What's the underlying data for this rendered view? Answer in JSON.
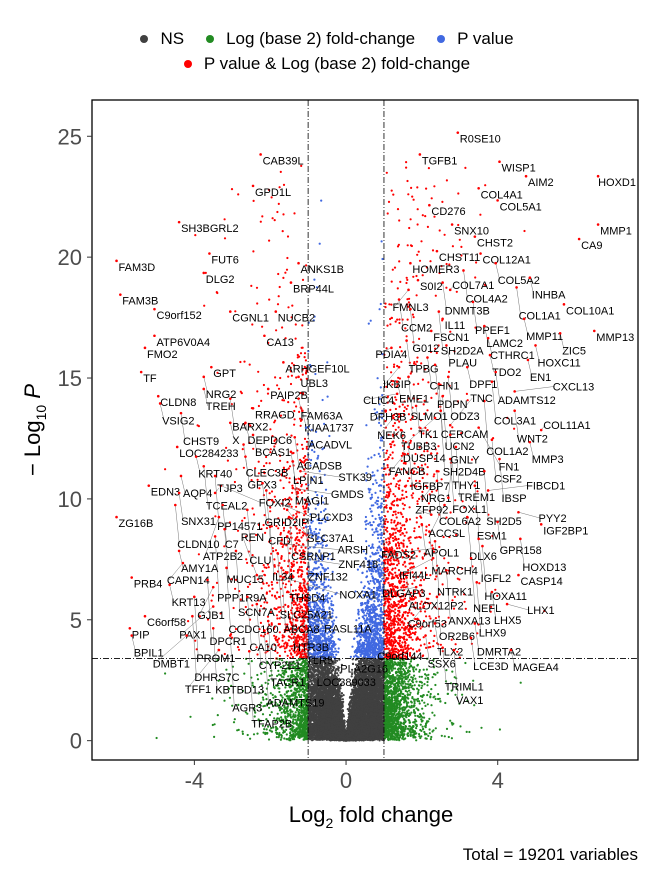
{
  "legend": {
    "items": [
      {
        "label": "NS",
        "color": "#404040"
      },
      {
        "label": "Log (base 2) fold-change",
        "color": "#228B22"
      },
      {
        "label": "P value",
        "color": "#4169E1"
      },
      {
        "label": "P value & Log (base 2) fold-change",
        "color": "#FF0000"
      }
    ]
  },
  "caption": "Total = 19201 variables",
  "chart_data": {
    "type": "scatter",
    "subtype": "volcano",
    "xlabel_main": "Log",
    "xlabel_sub": "2",
    "xlabel_rest": " fold change",
    "ylabel_prefix": "− Log",
    "ylabel_sub": "10",
    "ylabel_var": "P",
    "xlim": [
      -6.7,
      7.7
    ],
    "ylim": [
      -0.8,
      26.5
    ],
    "xticks": [
      -4,
      0,
      4
    ],
    "yticks": [
      0,
      5,
      10,
      15,
      20,
      25
    ],
    "fc_cutoff": [
      -1,
      1
    ],
    "p_cutoff": 3.4,
    "total_variables": 19201,
    "grid": false,
    "legend_position": "top",
    "colors": {
      "ns": "#404040",
      "fc": "#228B22",
      "p": "#4169E1",
      "both": "#FF0000"
    },
    "labeled_genes": [
      {
        "gene": "R0SE10",
        "x": 3.0,
        "y": 24.9
      },
      {
        "gene": "TGFB1",
        "x": 2.0,
        "y": 24.0
      },
      {
        "gene": "WISP1",
        "x": 4.1,
        "y": 23.7
      },
      {
        "gene": "AIM2",
        "x": 4.8,
        "y": 23.1
      },
      {
        "gene": "HOXD1",
        "x": 6.7,
        "y": 23.1
      },
      {
        "gene": "COL4A1",
        "x": 3.55,
        "y": 22.6
      },
      {
        "gene": "COL5A1",
        "x": 4.05,
        "y": 22.1
      },
      {
        "gene": "CD276",
        "x": 2.25,
        "y": 21.9
      },
      {
        "gene": "SNX10",
        "x": 2.85,
        "y": 21.1
      },
      {
        "gene": "MMP1",
        "x": 6.7,
        "y": 21.1
      },
      {
        "gene": "CHST2",
        "x": 3.45,
        "y": 20.6
      },
      {
        "gene": "CA9",
        "x": 6.2,
        "y": 20.5
      },
      {
        "gene": "CHST11",
        "x": 2.45,
        "y": 20.0
      },
      {
        "gene": "COL12A1",
        "x": 3.6,
        "y": 19.9
      },
      {
        "gene": "COL5A2",
        "x": 4.0,
        "y": 19.5
      },
      {
        "gene": "HOMER3",
        "x": 1.75,
        "y": 19.5
      },
      {
        "gene": "COL4A2",
        "x": 3.15,
        "y": 19.2
      },
      {
        "gene": "INHBA",
        "x": 4.9,
        "y": 18.9
      },
      {
        "gene": "S0I2",
        "x": 1.95,
        "y": 18.8
      },
      {
        "gene": "DNMT3B",
        "x": 2.6,
        "y": 18.7
      },
      {
        "gene": "COL1A1",
        "x": 4.55,
        "y": 18.5
      },
      {
        "gene": "FMNL3",
        "x": 1.7,
        "y": 18.4
      },
      {
        "gene": "COL7A1",
        "x": 2.8,
        "y": 18.4
      },
      {
        "gene": "CCM2",
        "x": 1.45,
        "y": 18.0
      },
      {
        "gene": "PPEF1",
        "x": 3.4,
        "y": 17.9
      },
      {
        "gene": "COL10A1",
        "x": 5.8,
        "y": 17.8
      },
      {
        "gene": "G012",
        "x": 1.75,
        "y": 17.6
      },
      {
        "gene": "SH2D2A",
        "x": 2.5,
        "y": 17.5
      },
      {
        "gene": "IL11",
        "x": 2.6,
        "y": 17.2
      },
      {
        "gene": "MMP11",
        "x": 4.75,
        "y": 17.2
      },
      {
        "gene": "FSCN1",
        "x": 2.3,
        "y": 16.7
      },
      {
        "gene": "LAMC2",
        "x": 3.7,
        "y": 16.9
      },
      {
        "gene": "MMP13",
        "x": 6.6,
        "y": 16.7
      },
      {
        "gene": "ZIC5",
        "x": 5.7,
        "y": 16.6
      },
      {
        "gene": "CTHRC1",
        "x": 3.8,
        "y": 16.4
      },
      {
        "gene": "TPBG",
        "x": 1.65,
        "y": 16.3
      },
      {
        "gene": "HOXC11",
        "x": 5.05,
        "y": 16.1
      },
      {
        "gene": "PLAU",
        "x": 2.7,
        "y": 16.1
      },
      {
        "gene": "PDIA4",
        "x": 1.25,
        "y": 16.0
      },
      {
        "gene": "TDO2",
        "x": 3.85,
        "y": 15.7
      },
      {
        "gene": "CHN1",
        "x": 2.2,
        "y": 15.6
      },
      {
        "gene": "EN1",
        "x": 4.85,
        "y": 15.5
      },
      {
        "gene": "PDPN",
        "x": 2.4,
        "y": 15.3
      },
      {
        "gene": "DPF1",
        "x": 3.25,
        "y": 15.2
      },
      {
        "gene": "IKBIP",
        "x": 1.45,
        "y": 15.2
      },
      {
        "gene": "ADAMTS12",
        "x": 4.0,
        "y": 15.0
      },
      {
        "gene": "ODZ3",
        "x": 2.75,
        "y": 14.8
      },
      {
        "gene": "SLMO1",
        "x": 1.7,
        "y": 14.8
      },
      {
        "gene": "COL3A1",
        "x": 3.9,
        "y": 14.6
      },
      {
        "gene": "EME1",
        "x": 1.4,
        "y": 14.6
      },
      {
        "gene": "CERCAM",
        "x": 2.5,
        "y": 14.5
      },
      {
        "gene": "CXCL13",
        "x": 4.5,
        "y": 14.2
      },
      {
        "gene": "CLIC4",
        "x": 1.4,
        "y": 14.1
      },
      {
        "gene": "UCN2",
        "x": 2.6,
        "y": 14.0
      },
      {
        "gene": "COL1A2",
        "x": 3.7,
        "y": 13.8
      },
      {
        "gene": "WNT2",
        "x": 4.5,
        "y": 13.4
      },
      {
        "gene": "TK1",
        "x": 1.9,
        "y": 13.6
      },
      {
        "gene": "SH2D4B",
        "x": 2.55,
        "y": 13.4
      },
      {
        "gene": "DPH3B",
        "x": 1.1,
        "y": 13.4
      },
      {
        "gene": "TUBB3",
        "x": 2.4,
        "y": 13.1
      },
      {
        "gene": "NEK6",
        "x": 1.3,
        "y": 13.1
      },
      {
        "gene": "TNC",
        "x": 2.8,
        "y": 12.8
      },
      {
        "gene": "FN1",
        "x": 3.55,
        "y": 12.7
      },
      {
        "gene": "COL11A1",
        "x": 5.2,
        "y": 12.6
      },
      {
        "gene": "DUSP14",
        "x": 1.5,
        "y": 12.6
      },
      {
        "gene": "CSF2",
        "x": 3.9,
        "y": 12.2
      },
      {
        "gene": "MMP3",
        "x": 4.9,
        "y": 12.1
      },
      {
        "gene": "THY1",
        "x": 2.8,
        "y": 12.4
      },
      {
        "gene": "IGFBP7",
        "x": 1.7,
        "y": 11.9
      },
      {
        "gene": "TREM1",
        "x": 2.95,
        "y": 11.9
      },
      {
        "gene": "FANCB",
        "x": 1.6,
        "y": 11.6
      },
      {
        "gene": "FOXL1",
        "x": 2.8,
        "y": 11.4
      },
      {
        "gene": "IBSP",
        "x": 4.1,
        "y": 11.4
      },
      {
        "gene": "COL6A2",
        "x": 2.45,
        "y": 10.9
      },
      {
        "gene": "SH2D5",
        "x": 3.7,
        "y": 10.9
      },
      {
        "gene": "NRG1",
        "x": 2.45,
        "y": 10.5
      },
      {
        "gene": "ESM1",
        "x": 3.45,
        "y": 10.3
      },
      {
        "gene": "FIBCD1",
        "x": 3.8,
        "y": 10.1
      },
      {
        "gene": "GNLY",
        "x": 2.75,
        "y": 9.8
      },
      {
        "gene": "ACCSL",
        "x": 2.65,
        "y": 9.5
      },
      {
        "gene": "PYY2",
        "x": 4.6,
        "y": 9.2
      },
      {
        "gene": "ZFP92",
        "x": 2.3,
        "y": 9.1
      },
      {
        "gene": "DLX6",
        "x": 3.25,
        "y": 9.0
      },
      {
        "gene": "GPR158",
        "x": 4.05,
        "y": 8.8
      },
      {
        "gene": "IGF2BP1",
        "x": 5.2,
        "y": 8.7
      },
      {
        "gene": "APOL1",
        "x": 2.05,
        "y": 8.7
      },
      {
        "gene": "MARCH4",
        "x": 2.25,
        "y": 8.4
      },
      {
        "gene": "IGFL2",
        "x": 3.55,
        "y": 8.1
      },
      {
        "gene": "HOXD13",
        "x": 4.65,
        "y": 8.1
      },
      {
        "gene": "NTRK1",
        "x": 2.4,
        "y": 8.0
      },
      {
        "gene": "HOXA11",
        "x": 3.65,
        "y": 7.8
      },
      {
        "gene": "FADS2",
        "x": 2.35,
        "y": 7.7
      },
      {
        "gene": "IFI44L",
        "x": 2.35,
        "y": 7.3
      },
      {
        "gene": "NEFL",
        "x": 3.35,
        "y": 7.3
      },
      {
        "gene": "ANXA13",
        "x": 2.7,
        "y": 6.8
      },
      {
        "gene": "CASP14",
        "x": 4.6,
        "y": 6.6
      },
      {
        "gene": "ALOX12P2",
        "x": 1.65,
        "y": 6.5
      },
      {
        "gene": "LHX9",
        "x": 3.5,
        "y": 6.3
      },
      {
        "gene": "DLGAP3",
        "x": 1.9,
        "y": 6.1
      },
      {
        "gene": "LHX5",
        "x": 3.9,
        "y": 5.9
      },
      {
        "gene": "OR2B6",
        "x": 2.45,
        "y": 5.7
      },
      {
        "gene": "LHX1",
        "x": 4.3,
        "y": 5.4
      },
      {
        "gene": "C9orf53",
        "x": 2.1,
        "y": 5.3
      },
      {
        "gene": "TLX2",
        "x": 2.4,
        "y": 4.6
      },
      {
        "gene": "DMRTA2",
        "x": 3.45,
        "y": 4.6
      },
      {
        "gene": "SSX6",
        "x": 2.15,
        "y": 4.1
      },
      {
        "gene": "LCE3D",
        "x": 3.35,
        "y": 4.0
      },
      {
        "gene": "TRIML1",
        "x": 2.6,
        "y": 3.6
      },
      {
        "gene": "VAX1",
        "x": 2.9,
        "y": 3.5
      },
      {
        "gene": "MAGEA4",
        "x": 4.4,
        "y": 3.5
      },
      {
        "gene": "C9orf144",
        "x": 1.3,
        "y": 3.5
      },
      {
        "gene": "CAB39L",
        "x": -2.2,
        "y": 24.0
      },
      {
        "gene": "GPD1L",
        "x": -2.4,
        "y": 22.7
      },
      {
        "gene": "SH3BGRL2",
        "x": -4.35,
        "y": 21.2
      },
      {
        "gene": "FUT6",
        "x": -3.55,
        "y": 19.9
      },
      {
        "gene": "FAM3D",
        "x": -6.0,
        "y": 19.6
      },
      {
        "gene": "DLG2",
        "x": -3.7,
        "y": 19.1
      },
      {
        "gene": "ANKS1B",
        "x": -1.2,
        "y": 19.5
      },
      {
        "gene": "BRP44L",
        "x": -1.4,
        "y": 18.7
      },
      {
        "gene": "FAM3B",
        "x": -5.9,
        "y": 18.2
      },
      {
        "gene": "C9orf152",
        "x": -5.0,
        "y": 17.6
      },
      {
        "gene": "CGNL1",
        "x": -3.0,
        "y": 17.5
      },
      {
        "gene": "NUCB2",
        "x": -1.8,
        "y": 17.5
      },
      {
        "gene": "ATP6V0A4",
        "x": -5.0,
        "y": 16.5
      },
      {
        "gene": "CA13",
        "x": -2.1,
        "y": 16.5
      },
      {
        "gene": "FMO2",
        "x": -5.25,
        "y": 16.0
      },
      {
        "gene": "ARHGEF10L",
        "x": -1.6,
        "y": 15.4
      },
      {
        "gene": "GPT",
        "x": -3.5,
        "y": 15.2
      },
      {
        "gene": "TF",
        "x": -5.35,
        "y": 15.0
      },
      {
        "gene": "UBL3",
        "x": -1.2,
        "y": 14.8
      },
      {
        "gene": "NRG2",
        "x": -3.7,
        "y": 14.8
      },
      {
        "gene": "PAIP2B",
        "x": -2.0,
        "y": 14.3
      },
      {
        "gene": "TREH",
        "x": -3.7,
        "y": 14.3
      },
      {
        "gene": "CLDN8",
        "x": -4.9,
        "y": 14.0
      },
      {
        "gene": "BARX2",
        "x": -3.0,
        "y": 13.9
      },
      {
        "gene": "FAM63A",
        "x": -1.2,
        "y": 13.9
      },
      {
        "gene": "VSIG2",
        "x": -4.85,
        "y": 13.7
      },
      {
        "gene": "RRAGD",
        "x": -2.4,
        "y": 13.5
      },
      {
        "gene": "KIAA1737",
        "x": -1.1,
        "y": 13.4
      },
      {
        "gene": "CHST9",
        "x": -4.3,
        "y": 13.3
      },
      {
        "gene": "X",
        "x": -3.0,
        "y": 12.9
      },
      {
        "gene": "DEPDC6",
        "x": -2.6,
        "y": 12.9
      },
      {
        "gene": "ACADVL",
        "x": -1.0,
        "y": 12.7
      },
      {
        "gene": "BCAS1",
        "x": -2.4,
        "y": 12.4
      },
      {
        "gene": "ACADSB",
        "x": -1.3,
        "y": 12.3
      },
      {
        "gene": "CLEC3B",
        "x": -2.65,
        "y": 12.0
      },
      {
        "gene": "LOC284233",
        "x": -4.4,
        "y": 11.9
      },
      {
        "gene": "LPIN1",
        "x": -1.4,
        "y": 11.7
      },
      {
        "gene": "KRT40",
        "x": -3.9,
        "y": 11.5
      },
      {
        "gene": "GPX3",
        "x": -2.6,
        "y": 11.5
      },
      {
        "gene": "MAGI1",
        "x": -1.35,
        "y": 11.3
      },
      {
        "gene": "TCEAL2",
        "x": -3.7,
        "y": 11.1
      },
      {
        "gene": "STK39",
        "x": -1.15,
        "y": 10.9
      },
      {
        "gene": "AQP4",
        "x": -4.3,
        "y": 10.7
      },
      {
        "gene": "PP14571",
        "x": -3.4,
        "y": 10.7
      },
      {
        "gene": "GRID2IP",
        "x": -2.15,
        "y": 10.4
      },
      {
        "gene": "EDN3",
        "x": -5.15,
        "y": 10.3
      },
      {
        "gene": "FOXI2",
        "x": -3.25,
        "y": 10.3
      },
      {
        "gene": "CFD",
        "x": -2.05,
        "y": 10.1
      },
      {
        "gene": "GMDS",
        "x": -1.35,
        "y": 10.2
      },
      {
        "gene": "SNX31",
        "x": -4.35,
        "y": 10.0
      },
      {
        "gene": "TJP3",
        "x": -3.4,
        "y": 10.0
      },
      {
        "gene": "PLCXD3",
        "x": -1.9,
        "y": 9.7
      },
      {
        "gene": "CLDN10",
        "x": -4.45,
        "y": 9.5
      },
      {
        "gene": "C7",
        "x": -3.2,
        "y": 9.5
      },
      {
        "gene": "CLU",
        "x": -2.55,
        "y": 9.3
      },
      {
        "gene": "SLC37A1",
        "x": -1.5,
        "y": 9.3
      },
      {
        "gene": "ZG16B",
        "x": -6.0,
        "y": 9.0
      },
      {
        "gene": "CSRNP1",
        "x": -1.45,
        "y": 9.0
      },
      {
        "gene": "ATP2B2",
        "x": -3.3,
        "y": 9.0
      },
      {
        "gene": "ZNF132",
        "x": -1.0,
        "y": 8.6
      },
      {
        "gene": "IL34",
        "x": -1.95,
        "y": 8.6
      },
      {
        "gene": "MUC15",
        "x": -3.15,
        "y": 8.5
      },
      {
        "gene": "THSD4",
        "x": -1.5,
        "y": 8.2
      },
      {
        "gene": "PPP1R9A",
        "x": -3.4,
        "y": 8.2
      },
      {
        "gene": "ARSH",
        "x": -1.65,
        "y": 7.9
      },
      {
        "gene": "AMY1A",
        "x": -4.35,
        "y": 7.6
      },
      {
        "gene": "SCN7A",
        "x": -2.85,
        "y": 7.6
      },
      {
        "gene": "SLC25A21",
        "x": -1.75,
        "y": 7.5
      },
      {
        "gene": "CAPN14",
        "x": -4.25,
        "y": 7.1
      },
      {
        "gene": "ZNF418",
        "x": -1.15,
        "y": 7.3
      },
      {
        "gene": "CCDC160",
        "x": -3.1,
        "y": 6.9
      },
      {
        "gene": "ABCA8",
        "x": -1.65,
        "y": 6.9
      },
      {
        "gene": "PRB4",
        "x": -5.6,
        "y": 6.5
      },
      {
        "gene": "REN",
        "x": -2.3,
        "y": 6.6
      },
      {
        "gene": "NOXA1",
        "x": -1.6,
        "y": 6.5
      },
      {
        "gene": "KRT13",
        "x": -4.6,
        "y": 6.2
      },
      {
        "gene": "DPCR1",
        "x": -3.6,
        "y": 6.4
      },
      {
        "gene": "GJB1",
        "x": -3.45,
        "y": 6.1
      },
      {
        "gene": "HTR3B",
        "x": -1.4,
        "y": 5.7
      },
      {
        "gene": "PROM1",
        "x": -3.95,
        "y": 5.7
      },
      {
        "gene": "CA10",
        "x": -2.55,
        "y": 5.7
      },
      {
        "gene": "PAX1",
        "x": -3.45,
        "y": 5.3
      },
      {
        "gene": "CYP2E1",
        "x": -2.3,
        "y": 5.4
      },
      {
        "gene": "RASL11A",
        "x": -1.05,
        "y": 5.1
      },
      {
        "gene": "C6orf58",
        "x": -5.25,
        "y": 4.9
      },
      {
        "gene": "DHRS7C",
        "x": -4.0,
        "y": 4.9
      },
      {
        "gene": "TLR5",
        "x": -1.05,
        "y": 4.7
      },
      {
        "gene": "TACR1",
        "x": -2.0,
        "y": 4.7
      },
      {
        "gene": "PIP",
        "x": -5.65,
        "y": 4.4
      },
      {
        "gene": "KBTBD13",
        "x": -3.45,
        "y": 4.4
      },
      {
        "gene": "ADAMTS19",
        "x": -2.1,
        "y": 4.3
      },
      {
        "gene": "BPIL1",
        "x": -5.6,
        "y": 4.1
      },
      {
        "gene": "DMBT1",
        "x": -4.15,
        "y": 4.1
      },
      {
        "gene": "AGR3",
        "x": -3.0,
        "y": 4.1
      },
      {
        "gene": "LOC389033",
        "x": -1.25,
        "y": 3.8
      },
      {
        "gene": "TFF1",
        "x": -3.3,
        "y": 3.5
      },
      {
        "gene": "TFAP2B",
        "x": -2.5,
        "y": 3.45
      },
      {
        "gene": "PLA2G16",
        "x": -1.1,
        "y": 3.45
      }
    ]
  }
}
